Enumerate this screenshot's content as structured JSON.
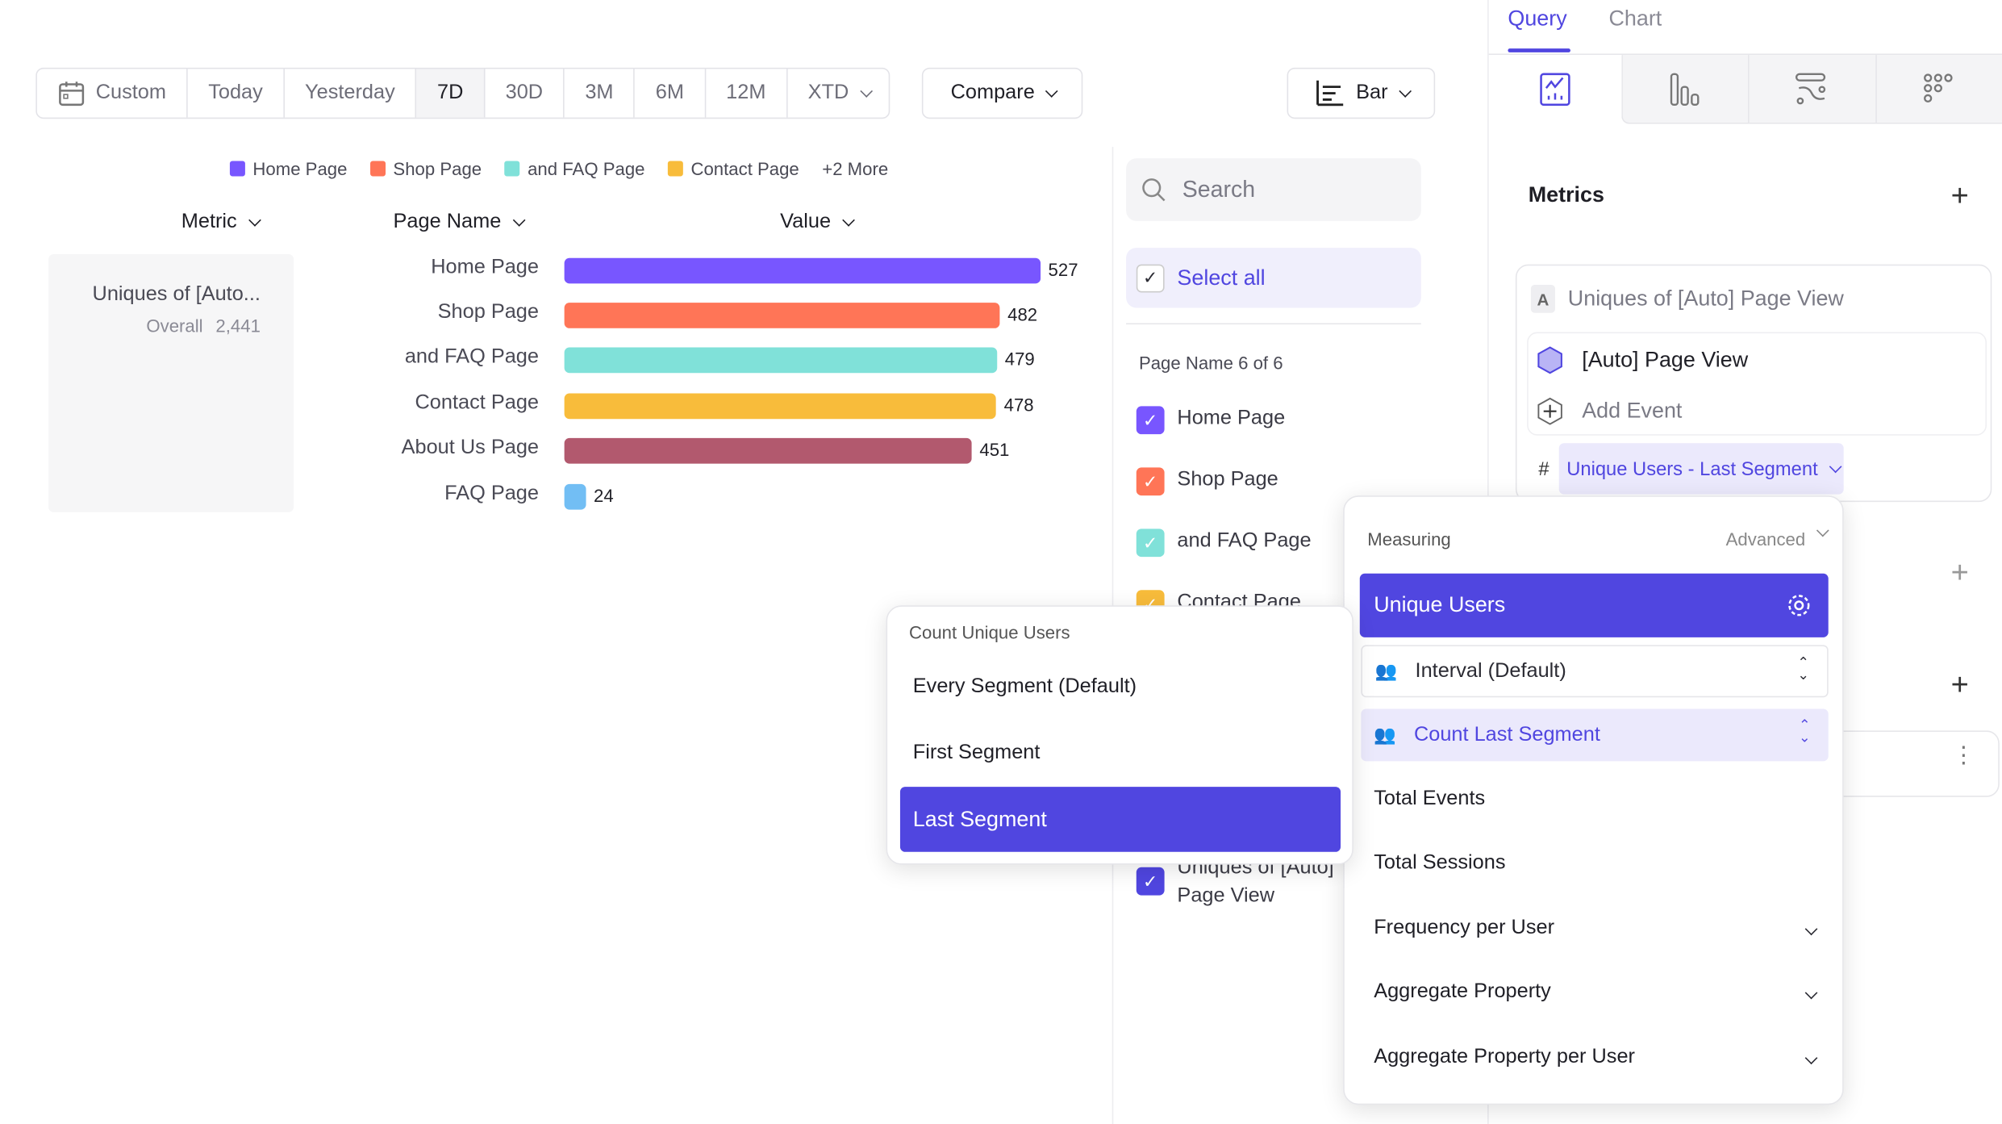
{
  "toolbar": {
    "date_ranges": [
      "Custom",
      "Today",
      "Yesterday",
      "7D",
      "30D",
      "3M",
      "6M",
      "12M",
      "XTD"
    ],
    "active_range": "7D",
    "compare_label": "Compare",
    "chart_type_label": "Bar",
    "calendar_icon": "calendar-icon",
    "chart_type_icon": "bar-chart-icon"
  },
  "legend": {
    "items": [
      {
        "label": "Home Page",
        "color": "#7856ff"
      },
      {
        "label": "Shop Page",
        "color": "#ff7557"
      },
      {
        "label": "and FAQ Page",
        "color": "#80e1d9"
      },
      {
        "label": "Contact Page",
        "color": "#f8bc3b"
      }
    ],
    "more_label": "+2 More"
  },
  "table": {
    "headers": {
      "metric": "Metric",
      "page_name": "Page Name",
      "value": "Value"
    },
    "metric_card": {
      "name": "Uniques of [Auto...",
      "overall_label": "Overall",
      "overall_value": "2,441"
    }
  },
  "chart_data": {
    "type": "bar",
    "orientation": "horizontal",
    "categories": [
      "Home Page",
      "Shop Page",
      "and FAQ Page",
      "Contact Page",
      "About Us Page",
      "FAQ Page"
    ],
    "values": [
      527,
      482,
      479,
      478,
      451,
      24
    ],
    "colors": [
      "#7856ff",
      "#ff7557",
      "#80e1d9",
      "#f8bc3b",
      "#b2596e",
      "#72bef4"
    ],
    "data_labels": [
      "527",
      "482",
      "479",
      "478",
      "451",
      "24"
    ]
  },
  "filter": {
    "search_placeholder": "Search",
    "select_all_label": "Select all",
    "group_label": "Page Name 6 of 6",
    "items": [
      {
        "label": "Home Page",
        "color": "#7856ff"
      },
      {
        "label": "Shop Page",
        "color": "#ff7557"
      },
      {
        "label": "and FAQ Page",
        "color": "#80e1d9"
      },
      {
        "label": "Contact Page",
        "color": "#f8bc3b"
      }
    ],
    "metric_item": {
      "label": "Uniques of [Auto] Page View",
      "color": "#5046e0"
    }
  },
  "right_panel": {
    "tabs": [
      "Query",
      "Chart"
    ],
    "active_tab": "Query",
    "view_icons": [
      "line-chart-icon",
      "bar-columns-icon",
      "flow-icon",
      "grid-dots-icon"
    ],
    "metrics_title": "Metrics",
    "metric": {
      "badge": "A",
      "title": "Uniques of [Auto] Page View",
      "event": "[Auto] Page View",
      "add_event": "Add Event",
      "measure_prefix": "#",
      "measure_label": "Unique Users - Last Segment"
    }
  },
  "measuring_popup": {
    "title": "Measuring",
    "advanced_label": "Advanced",
    "selected": "Unique Users",
    "interval_label": "Interval (Default)",
    "count_label": "Count Last Segment",
    "options": [
      "Total Events",
      "Total Sessions"
    ],
    "expandable_options": [
      "Frequency per User",
      "Aggregate Property",
      "Aggregate Property per User"
    ]
  },
  "count_popup": {
    "title": "Count Unique Users",
    "options": [
      "Every Segment (Default)",
      "First Segment",
      "Last Segment"
    ],
    "selected": "Last Segment"
  },
  "colors": {
    "accent": "#5046e0",
    "accent_light": "#ebe9fc"
  }
}
